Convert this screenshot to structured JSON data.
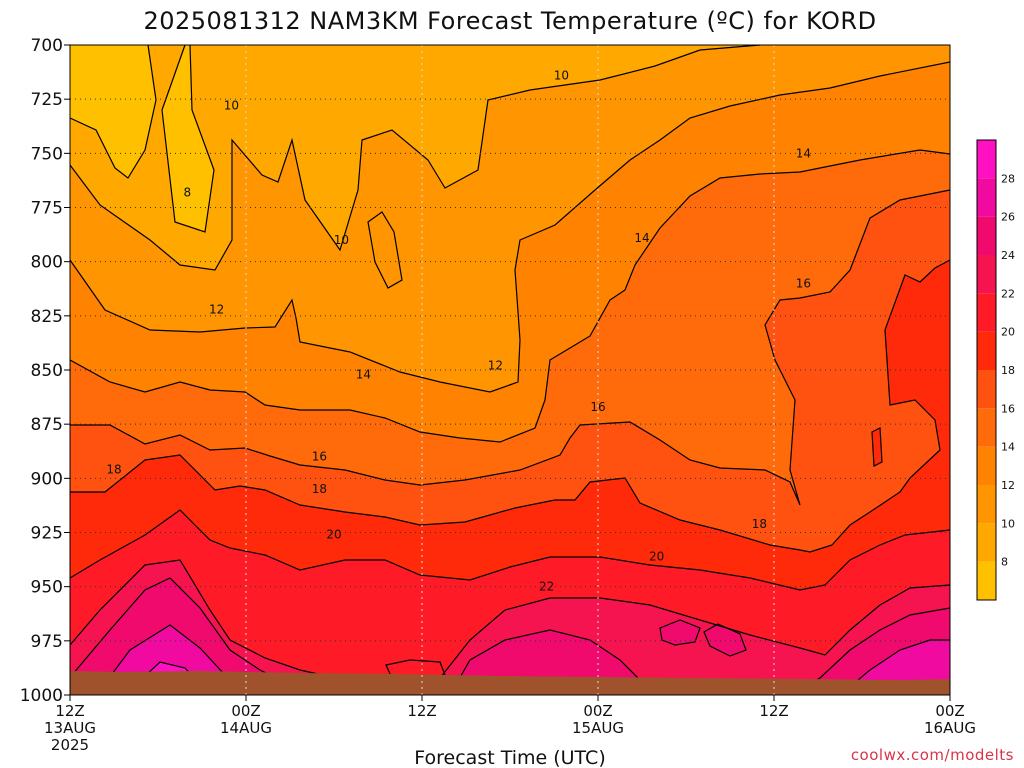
{
  "chart_data": {
    "type": "heatmap",
    "title": "2025081312 NAM3KM Forecast Temperature (ºC) for KORD",
    "xlabel": "Forecast Time (UTC)",
    "ylabel": "",
    "credit": "coolwx.com/modelts",
    "y_axis": {
      "inverted": true,
      "range": [
        700,
        1000
      ],
      "ticks": [
        700,
        725,
        750,
        775,
        800,
        825,
        850,
        875,
        900,
        925,
        950,
        975,
        1000
      ],
      "tick_labels": [
        "700",
        "725",
        "750",
        "775",
        "800",
        "825",
        "850",
        "875",
        "900",
        "925",
        "950",
        "975",
        "1000"
      ]
    },
    "x_axis": {
      "range_hours": [
        0,
        60
      ],
      "ticks": [
        {
          "hour": 0,
          "line1": "12Z",
          "line2": "13AUG",
          "line3": "2025"
        },
        {
          "hour": 12,
          "line1": "00Z",
          "line2": "14AUG",
          "line3": ""
        },
        {
          "hour": 24,
          "line1": "12Z",
          "line2": "",
          "line3": ""
        },
        {
          "hour": 36,
          "line1": "00Z",
          "line2": "15AUG",
          "line3": ""
        },
        {
          "hour": 48,
          "line1": "12Z",
          "line2": "",
          "line3": ""
        },
        {
          "hour": 60,
          "line1": "00Z",
          "line2": "16AUG",
          "line3": ""
        }
      ]
    },
    "grid": true,
    "colorbar": {
      "position": "right",
      "levels": [
        6,
        8,
        10,
        12,
        14,
        16,
        18,
        20,
        22,
        24,
        26,
        28,
        30
      ],
      "tick_labels": [
        "8",
        "10",
        "12",
        "14",
        "16",
        "18",
        "20",
        "22",
        "24",
        "26",
        "28"
      ],
      "colors": [
        "#ffc000",
        "#ffa800",
        "#ff9500",
        "#ff8200",
        "#ff6b0a",
        "#ff5210",
        "#ff2a0a",
        "#ff1a28",
        "#f51450",
        "#f00a6e",
        "#f00aa0",
        "#ff10c0"
      ]
    },
    "contour_labels": [
      {
        "text": "8",
        "hour": 8.0,
        "hPa": 768
      },
      {
        "text": "10",
        "hour": 11.0,
        "hPa": 728
      },
      {
        "text": "10",
        "hour": 18.5,
        "hPa": 790
      },
      {
        "text": "10",
        "hour": 33.5,
        "hPa": 714
      },
      {
        "text": "12",
        "hour": 10.0,
        "hPa": 822
      },
      {
        "text": "12",
        "hour": 29.0,
        "hPa": 848
      },
      {
        "text": "14",
        "hour": 20.0,
        "hPa": 852
      },
      {
        "text": "14",
        "hour": 39.0,
        "hPa": 789
      },
      {
        "text": "14",
        "hour": 50.0,
        "hPa": 750
      },
      {
        "text": "16",
        "hour": 17.0,
        "hPa": 890
      },
      {
        "text": "16",
        "hour": 36.0,
        "hPa": 867
      },
      {
        "text": "16",
        "hour": 50.0,
        "hPa": 810
      },
      {
        "text": "18",
        "hour": 3.0,
        "hPa": 896
      },
      {
        "text": "18",
        "hour": 17.0,
        "hPa": 905
      },
      {
        "text": "18",
        "hour": 47.0,
        "hPa": 921
      },
      {
        "text": "20",
        "hour": 18.0,
        "hPa": 926
      },
      {
        "text": "20",
        "hour": 40.0,
        "hPa": 936
      },
      {
        "text": "22",
        "hour": 32.5,
        "hPa": 950
      }
    ]
  }
}
